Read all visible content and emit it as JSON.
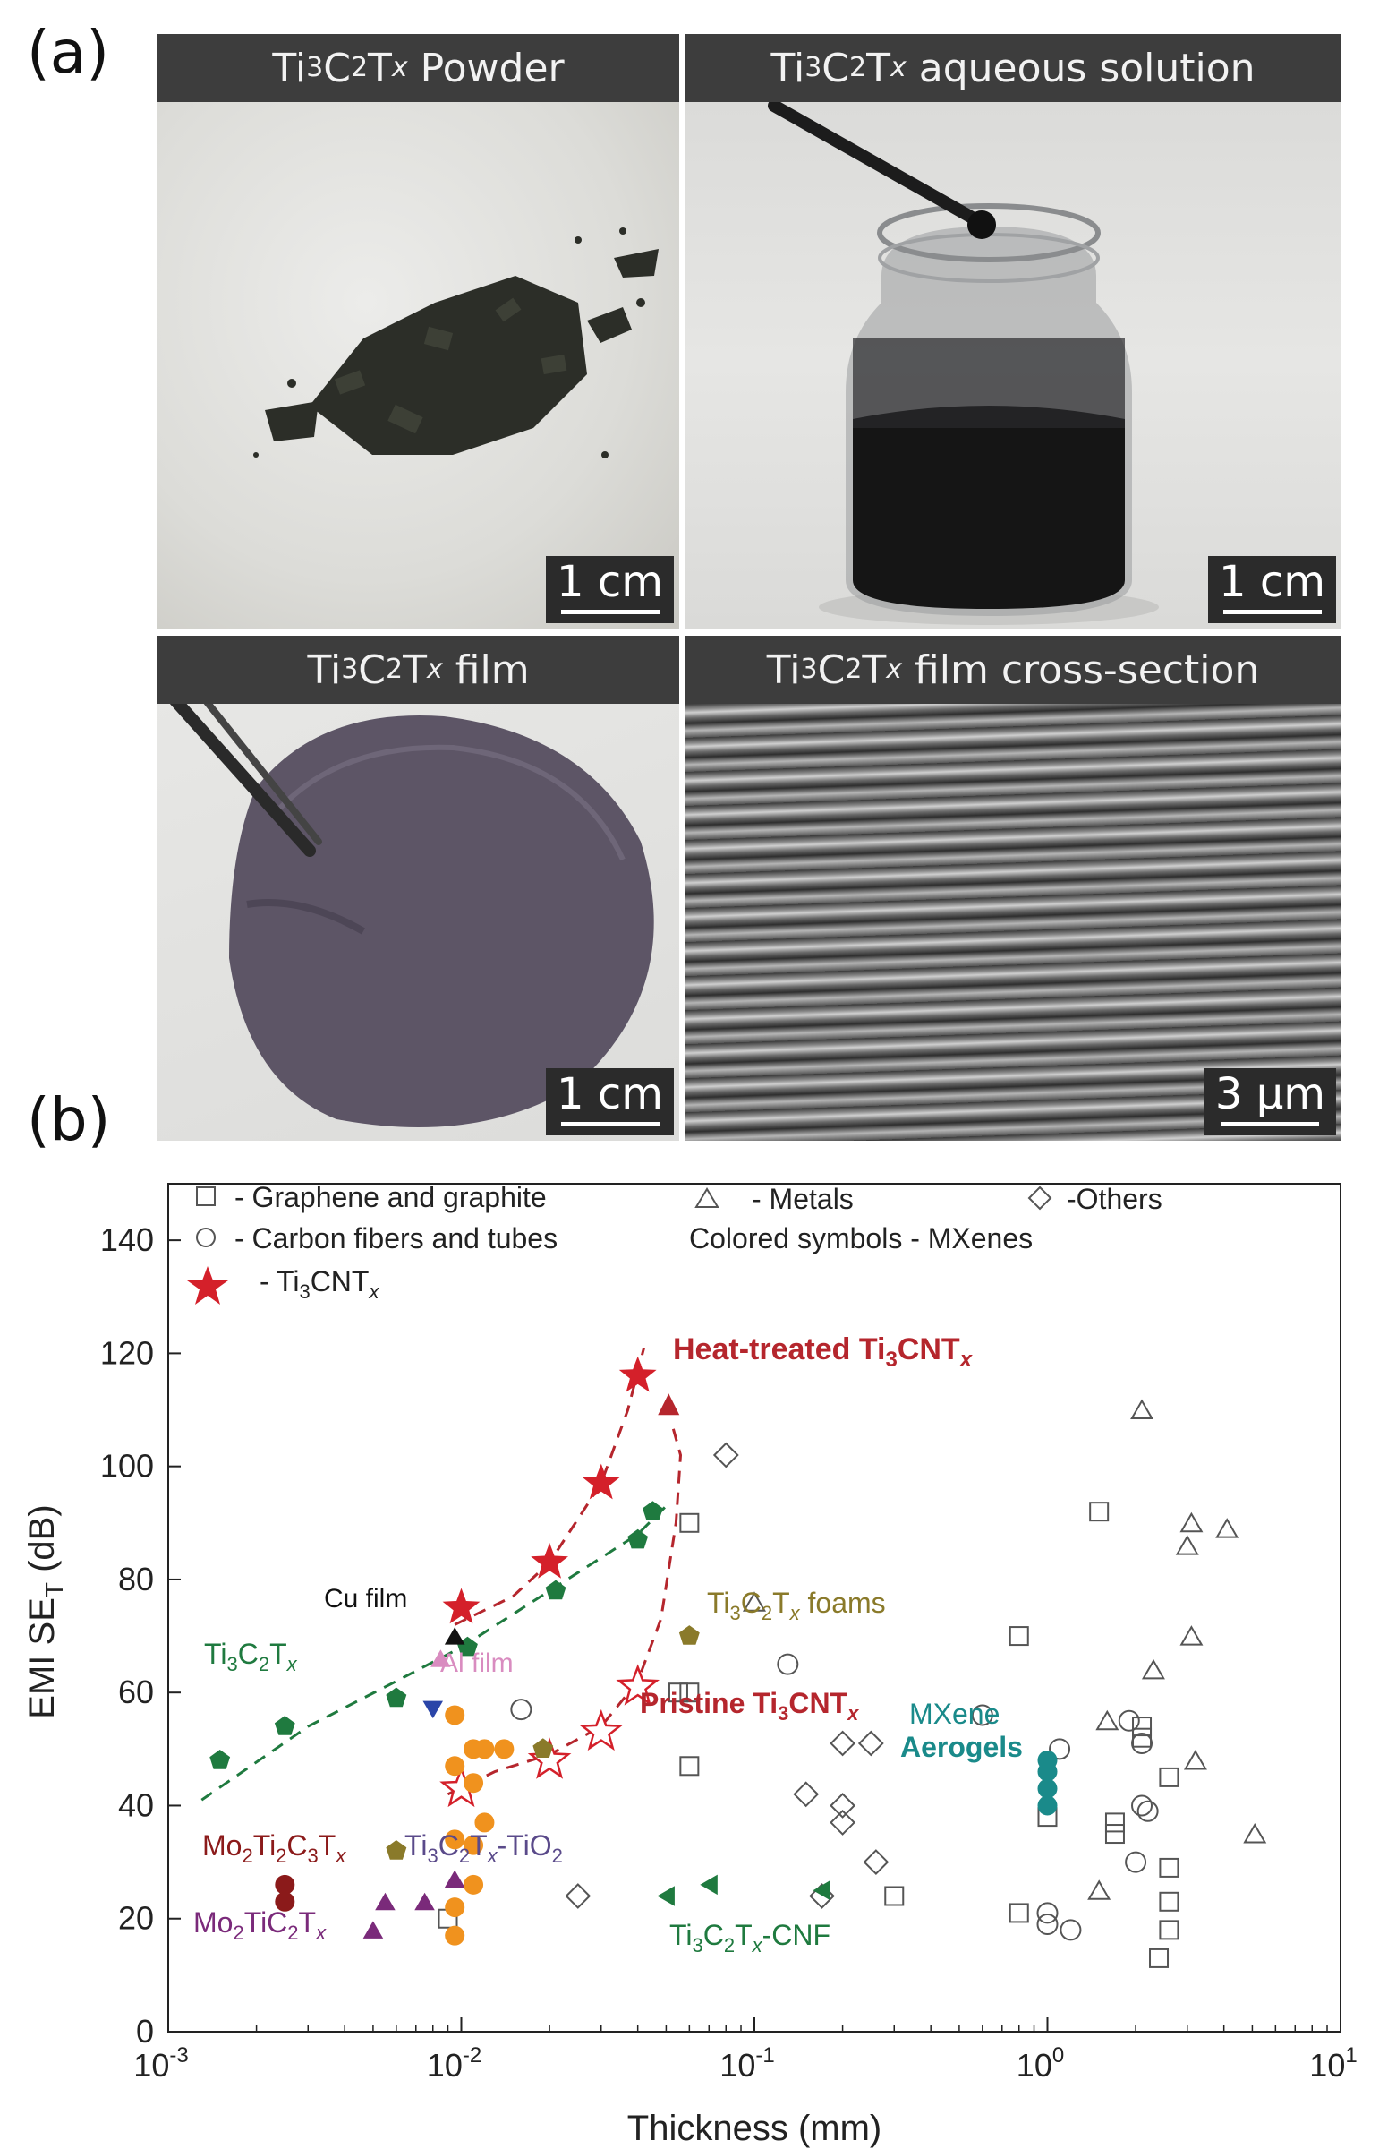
{
  "figure": {
    "panel_a_letter": "(a)",
    "panel_b_letter": "(b)",
    "photos": [
      {
        "title_pre": "Ti",
        "title_sub1": "3",
        "title_mid": "C",
        "title_sub2": "2",
        "title_t": "T",
        "title_x": "x",
        "title_post": " Powder",
        "scale": "1 cm"
      },
      {
        "title_pre": "Ti",
        "title_sub1": "3",
        "title_mid": "C",
        "title_sub2": "2",
        "title_t": "T",
        "title_x": "x",
        "title_post": " aqueous solution",
        "scale": "1 cm"
      },
      {
        "title_pre": "Ti",
        "title_sub1": "3",
        "title_mid": "C",
        "title_sub2": "2",
        "title_t": "T",
        "title_x": "x",
        "title_post": " film",
        "scale": "1 cm"
      },
      {
        "title_pre": "Ti",
        "title_sub1": "3",
        "title_mid": "C",
        "title_sub2": "2",
        "title_t": "T",
        "title_x": "x",
        "title_post": " film cross-section",
        "scale": "3 µm"
      }
    ]
  },
  "chart_data": {
    "type": "scatter",
    "xscale": "log",
    "xlim": [
      0.001,
      10
    ],
    "ylim": [
      0,
      150
    ],
    "xlabel": "Thickness (mm)",
    "ylabel": "EMI SE_T (dB)",
    "x_ticks": [
      {
        "label": "10",
        "exp": "-3",
        "v": 0.001
      },
      {
        "label": "10",
        "exp": "-2",
        "v": 0.01
      },
      {
        "label": "10",
        "exp": "-1",
        "v": 0.1
      },
      {
        "label": "10",
        "exp": "0",
        "v": 1
      },
      {
        "label": "10",
        "exp": "1",
        "v": 10
      }
    ],
    "y_ticks": [
      0,
      20,
      40,
      60,
      80,
      100,
      120,
      140
    ],
    "legend": {
      "graphene": "- Graphene and graphite",
      "carbon": "- Carbon fibers and tubes",
      "metals": "- Metals",
      "others": "-Others",
      "colored": "Colored symbols - MXenes",
      "ti3cnt": "- Ti3CNTx"
    },
    "annotations": {
      "heat_treated": "Heat-treated Ti3CNTx",
      "pristine": "Pristine Ti3CNTx",
      "cu_film": "Cu film",
      "al_film": "Al film",
      "ti3c2tx": "Ti3C2Tx",
      "foams": "Ti3C2Tx foams",
      "mxene": "MXene",
      "aerogels": "Aerogels",
      "mo2ti2": "Mo2Ti2C3Tx",
      "tio2": "Ti3C2Tx-TiO2",
      "mo2ti": "Mo2TiC2Tx",
      "cnf": "Ti3C2Tx-CNF"
    },
    "series": [
      {
        "name": "Graphene and graphite",
        "marker": "square",
        "color": "#555555",
        "points": [
          [
            0.009,
            20
          ],
          [
            0.06,
            90
          ],
          [
            0.06,
            60
          ],
          [
            0.055,
            60
          ],
          [
            0.06,
            47
          ],
          [
            0.3,
            24
          ],
          [
            0.8,
            70
          ],
          [
            0.8,
            21
          ],
          [
            1.0,
            38
          ],
          [
            1.5,
            92
          ],
          [
            1.7,
            37
          ],
          [
            1.7,
            35
          ],
          [
            2.1,
            54
          ],
          [
            2.1,
            52
          ],
          [
            2.6,
            45
          ],
          [
            2.6,
            29
          ],
          [
            2.6,
            23
          ],
          [
            2.6,
            18
          ],
          [
            2.4,
            13
          ]
        ]
      },
      {
        "name": "Carbon fibers and tubes",
        "marker": "circle",
        "color": "#555555",
        "points": [
          [
            0.016,
            57
          ],
          [
            0.13,
            65
          ],
          [
            0.6,
            56
          ],
          [
            1.0,
            21
          ],
          [
            1.0,
            19
          ],
          [
            1.1,
            50
          ],
          [
            1.2,
            18
          ],
          [
            1.9,
            55
          ],
          [
            2.1,
            51
          ],
          [
            2.1,
            40
          ],
          [
            2.2,
            39
          ],
          [
            2.0,
            30
          ]
        ]
      },
      {
        "name": "Metals",
        "marker": "triangle",
        "color": "#555555",
        "points": [
          [
            0.1,
            76
          ],
          [
            1.5,
            25
          ],
          [
            1.6,
            55
          ],
          [
            2.1,
            110
          ],
          [
            2.3,
            64
          ],
          [
            3.0,
            86
          ],
          [
            3.1,
            90
          ],
          [
            3.1,
            70
          ],
          [
            3.2,
            48
          ],
          [
            4.1,
            89
          ],
          [
            5.1,
            35
          ]
        ]
      },
      {
        "name": "Others",
        "marker": "diamond",
        "color": "#555555",
        "points": [
          [
            0.025,
            24
          ],
          [
            0.08,
            102
          ],
          [
            0.15,
            42
          ],
          [
            0.17,
            24
          ],
          [
            0.2,
            51
          ],
          [
            0.2,
            40
          ],
          [
            0.2,
            37
          ],
          [
            0.25,
            51
          ],
          [
            0.26,
            30
          ]
        ]
      },
      {
        "name": "Heat-treated Ti3CNTx",
        "marker": "star",
        "color": "#d4202a",
        "points": [
          [
            0.01,
            75
          ],
          [
            0.02,
            83
          ],
          [
            0.03,
            97
          ],
          [
            0.04,
            116
          ]
        ]
      },
      {
        "name": "Pristine Ti3CNTx",
        "marker": "star-open",
        "color": "#d4202a",
        "points": [
          [
            0.01,
            43
          ],
          [
            0.02,
            48
          ],
          [
            0.03,
            53
          ],
          [
            0.04,
            61
          ]
        ]
      },
      {
        "name": "Ti3C2Tx",
        "marker": "pentagon",
        "color": "#1f7a3f",
        "points": [
          [
            0.0015,
            48
          ],
          [
            0.0025,
            54
          ],
          [
            0.006,
            59
          ],
          [
            0.0105,
            68
          ],
          [
            0.021,
            78
          ],
          [
            0.04,
            87
          ],
          [
            0.045,
            92
          ]
        ]
      },
      {
        "name": "Ti3C2Tx foams",
        "marker": "pentagon",
        "color": "#8a7a2a",
        "points": [
          [
            0.06,
            70
          ],
          [
            0.019,
            50
          ]
        ]
      },
      {
        "name": "Cu film",
        "marker": "triangle-filled",
        "color": "#111111",
        "points": [
          [
            0.0095,
            70
          ]
        ]
      },
      {
        "name": "Al film",
        "marker": "triangle-filled",
        "color": "#d98cc0",
        "points": [
          [
            0.0085,
            66
          ]
        ]
      },
      {
        "name": "Blue triangle",
        "marker": "triangle-down",
        "color": "#2a45a8",
        "points": [
          [
            0.008,
            57
          ]
        ]
      },
      {
        "name": "Ti3C2Tx-TiO2",
        "marker": "pentagon",
        "color": "#8a7a2a",
        "points": [
          [
            0.006,
            32
          ]
        ]
      },
      {
        "name": "Mo2Ti2C3Tx",
        "marker": "circle-filled",
        "color": "#8b1a1a",
        "points": [
          [
            0.0025,
            26
          ],
          [
            0.0025,
            23
          ]
        ]
      },
      {
        "name": "Mo2TiC2Tx",
        "marker": "triangle-filled",
        "color": "#7a2a7a",
        "points": [
          [
            0.005,
            18
          ],
          [
            0.0055,
            23
          ],
          [
            0.0075,
            23
          ],
          [
            0.0095,
            27
          ]
        ]
      },
      {
        "name": "Orange",
        "marker": "circle-filled",
        "color": "#f0921e",
        "points": [
          [
            0.0095,
            56
          ],
          [
            0.0095,
            47
          ],
          [
            0.011,
            50
          ],
          [
            0.012,
            50
          ],
          [
            0.011,
            44
          ],
          [
            0.014,
            50
          ],
          [
            0.012,
            37
          ],
          [
            0.011,
            33
          ],
          [
            0.011,
            26
          ],
          [
            0.0095,
            22
          ],
          [
            0.0095,
            17
          ],
          [
            0.0095,
            34
          ]
        ]
      },
      {
        "name": "Ti3C2Tx-CNF",
        "marker": "triangle-left",
        "color": "#1f7a3f",
        "points": [
          [
            0.05,
            24
          ],
          [
            0.07,
            26
          ],
          [
            0.17,
            25
          ]
        ]
      },
      {
        "name": "MXene Aerogels",
        "marker": "circle-filled",
        "color": "#1a8a8a",
        "points": [
          [
            1.0,
            48
          ],
          [
            1.0,
            46
          ],
          [
            1.0,
            43
          ],
          [
            1.0,
            40
          ]
        ]
      }
    ]
  }
}
